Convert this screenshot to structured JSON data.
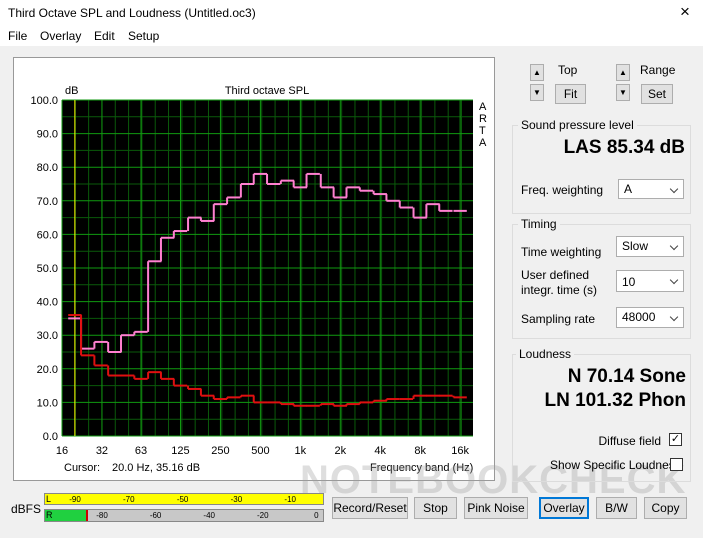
{
  "window": {
    "title": "Third Octave SPL and Loudness (Untitled.oc3)",
    "close": "×"
  },
  "menu": [
    "File",
    "Overlay",
    "Edit",
    "Setup"
  ],
  "chart_data": {
    "type": "line",
    "step": true,
    "title": "Third octave SPL",
    "y_label": "dB",
    "x_label": "Frequency band (Hz)",
    "brand": "ARTA",
    "cursor_label": "Cursor:",
    "cursor_value": "20.0 Hz, 35.16 dB",
    "x": [
      20,
      25,
      31.5,
      40,
      50,
      63,
      80,
      100,
      125,
      160,
      200,
      250,
      315,
      400,
      500,
      630,
      800,
      1000,
      1250,
      1600,
      2000,
      2500,
      3150,
      4000,
      5000,
      6300,
      8000,
      10000,
      12500,
      16000
    ],
    "series": [
      {
        "color": "#ff80d0",
        "values": [
          35,
          26,
          28,
          25,
          30,
          31,
          52,
          59,
          61,
          65,
          64,
          69,
          71,
          75,
          78,
          75,
          76,
          74,
          78,
          74,
          71,
          74,
          73,
          72,
          70,
          68,
          65,
          69,
          67,
          67
        ]
      },
      {
        "color": "#e01010",
        "values": [
          36,
          24,
          21,
          18,
          18,
          17,
          19,
          17,
          15,
          14,
          12,
          11,
          11.5,
          12,
          10,
          10,
          9.5,
          9,
          9,
          9.5,
          9,
          9.5,
          10,
          10.5,
          11,
          11,
          12,
          12,
          12,
          11.5
        ]
      }
    ],
    "xlog": true,
    "xlim": [
      16,
      20000
    ],
    "xticks": [
      16,
      32,
      63,
      125,
      250,
      500,
      {
        "value": 1000,
        "label": "1k"
      },
      {
        "value": 2000,
        "label": "2k"
      },
      {
        "value": 4000,
        "label": "4k"
      },
      {
        "value": 8000,
        "label": "8k"
      },
      {
        "value": 16000,
        "label": "16k"
      }
    ],
    "ylim": [
      0,
      100
    ],
    "yticks": [
      {
        "value": 0,
        "label": "0.0"
      },
      {
        "value": 10,
        "label": "10.0"
      },
      {
        "value": 20,
        "label": "20.0"
      },
      {
        "value": 30,
        "label": "30.0"
      },
      {
        "value": 40,
        "label": "40.0"
      },
      {
        "value": 50,
        "label": "50.0"
      },
      {
        "value": 60,
        "label": "60.0"
      },
      {
        "value": 70,
        "label": "70.0"
      },
      {
        "value": 80,
        "label": "80.0"
      },
      {
        "value": 90,
        "label": "90.0"
      },
      {
        "value": 100,
        "label": "100.0"
      }
    ],
    "grid": true
  },
  "controls": {
    "top_label": "Top",
    "top_button": "Fit",
    "range_label": "Range",
    "range_button": "Set"
  },
  "spl": {
    "group": "Sound pressure level",
    "reading": "LAS 85.34 dB",
    "weighting_label": "Freq. weighting",
    "weighting": "A"
  },
  "timing": {
    "group": "Timing",
    "time_weighting_label": "Time weighting",
    "time_weighting": "Slow",
    "integr_label": "User defined integr. time (s)",
    "integr": "10",
    "rate_label": "Sampling rate",
    "rate": "48000"
  },
  "loudness": {
    "group": "Loudness",
    "n": "N 70.14 Sone",
    "ln": "LN 101.32 Phon",
    "diffuse": "Diffuse field",
    "diffuse_checked": true,
    "specific": "Show Specific Loudness",
    "specific_checked": false
  },
  "meter": {
    "label": "dBFS",
    "left": "L",
    "right": "R",
    "top_scale": [
      "-90",
      "-70",
      "-50",
      "-30",
      "-10"
    ],
    "bottom_scale": [
      "-80",
      "-60",
      "-40",
      "-20",
      "0"
    ]
  },
  "buttons": [
    "Record/Reset",
    "Stop",
    "Pink Noise",
    "Overlay",
    "B/W",
    "Copy"
  ],
  "watermark": "NOTEBOOKCHECK"
}
